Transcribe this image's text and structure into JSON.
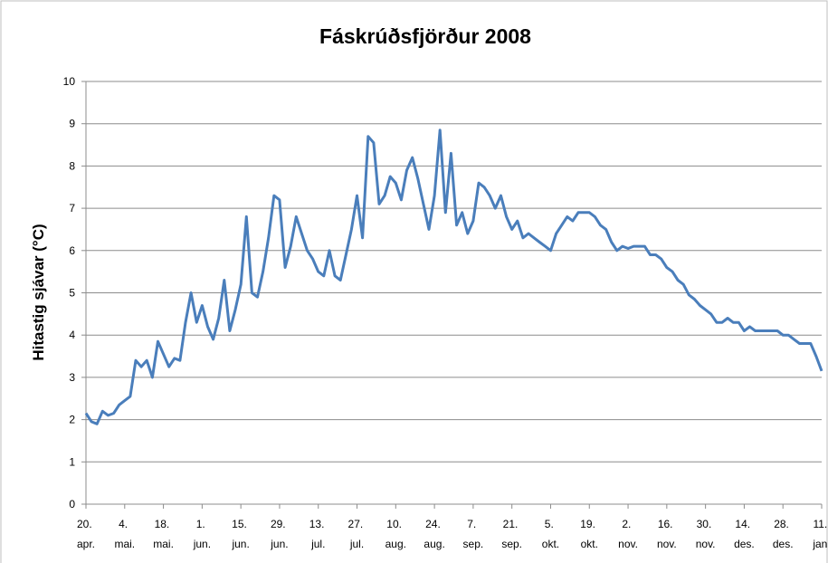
{
  "chart_data": {
    "type": "line",
    "title": "Fáskrúðsfjörður 2008",
    "y_label": "Hitastig sjávar (°C)",
    "categories": [
      "20. apr.",
      null,
      null,
      null,
      null,
      null,
      null,
      "4. mai.",
      null,
      null,
      null,
      null,
      null,
      null,
      "18. mai.",
      null,
      null,
      null,
      null,
      null,
      null,
      "1. jun.",
      null,
      null,
      null,
      null,
      null,
      null,
      "15. jun.",
      null,
      null,
      null,
      null,
      null,
      null,
      "29. jun.",
      null,
      null,
      null,
      null,
      null,
      null,
      "13. jul.",
      null,
      null,
      null,
      null,
      null,
      null,
      "27. jul.",
      null,
      null,
      null,
      null,
      null,
      null,
      "10. aug.",
      null,
      null,
      null,
      null,
      null,
      null,
      "24. aug.",
      null,
      null,
      null,
      null,
      null,
      null,
      "7. sep.",
      null,
      null,
      null,
      null,
      null,
      null,
      "21. sep.",
      null,
      null,
      null,
      null,
      null,
      null,
      "5. okt.",
      null,
      null,
      null,
      null,
      null,
      null,
      "19. okt.",
      null,
      null,
      null,
      null,
      null,
      null,
      "2. nov.",
      null,
      null,
      null,
      null,
      null,
      null,
      "16. nov.",
      null,
      null,
      null,
      null,
      null,
      null,
      "30. nov.",
      null,
      null,
      null,
      null,
      null,
      null,
      "14. des.",
      null,
      null,
      null,
      null,
      null,
      null,
      "28. des.",
      null,
      null,
      null,
      null,
      null,
      null,
      "11. jan."
    ],
    "series": [
      {
        "color": "#4a7ebb",
        "values": [
          2.15,
          1.95,
          1.9,
          2.2,
          2.1,
          2.15,
          2.35,
          2.45,
          2.55,
          3.4,
          3.25,
          3.4,
          3.0,
          3.85,
          3.55,
          3.25,
          3.45,
          3.4,
          4.3,
          5.0,
          4.3,
          4.7,
          4.2,
          3.9,
          4.4,
          5.3,
          4.1,
          4.6,
          5.2,
          6.8,
          5.0,
          4.9,
          5.5,
          6.3,
          7.3,
          7.2,
          5.6,
          6.1,
          6.8,
          6.4,
          6.0,
          5.8,
          5.5,
          5.4,
          6.0,
          5.4,
          5.3,
          5.9,
          6.5,
          7.3,
          6.3,
          8.7,
          8.55,
          7.1,
          7.3,
          7.75,
          7.6,
          7.2,
          7.9,
          8.2,
          7.7,
          7.1,
          6.5,
          7.3,
          8.85,
          6.9,
          8.3,
          6.6,
          6.9,
          6.4,
          6.7,
          7.6,
          7.5,
          7.3,
          7.0,
          7.3,
          6.8,
          6.5,
          6.7,
          6.3,
          6.4,
          6.3,
          6.2,
          6.1,
          6.0,
          6.4,
          6.6,
          6.8,
          6.7,
          6.9,
          6.9,
          6.9,
          6.8,
          6.6,
          6.5,
          6.2,
          6.0,
          6.1,
          6.05,
          6.1,
          6.1,
          6.1,
          5.9,
          5.9,
          5.8,
          5.6,
          5.5,
          5.3,
          5.2,
          4.95,
          4.85,
          4.7,
          4.6,
          4.5,
          4.3,
          4.3,
          4.4,
          4.3,
          4.3,
          4.1,
          4.2,
          4.1,
          4.1,
          4.1,
          4.1,
          4.1,
          4.0,
          4.0,
          3.9,
          3.8,
          3.8,
          3.8,
          3.5,
          3.15
        ]
      }
    ],
    "ylim": [
      0,
      10
    ],
    "yticks": [
      0,
      1,
      2,
      3,
      4,
      5,
      6,
      7,
      8,
      9,
      10
    ],
    "grid": true
  }
}
